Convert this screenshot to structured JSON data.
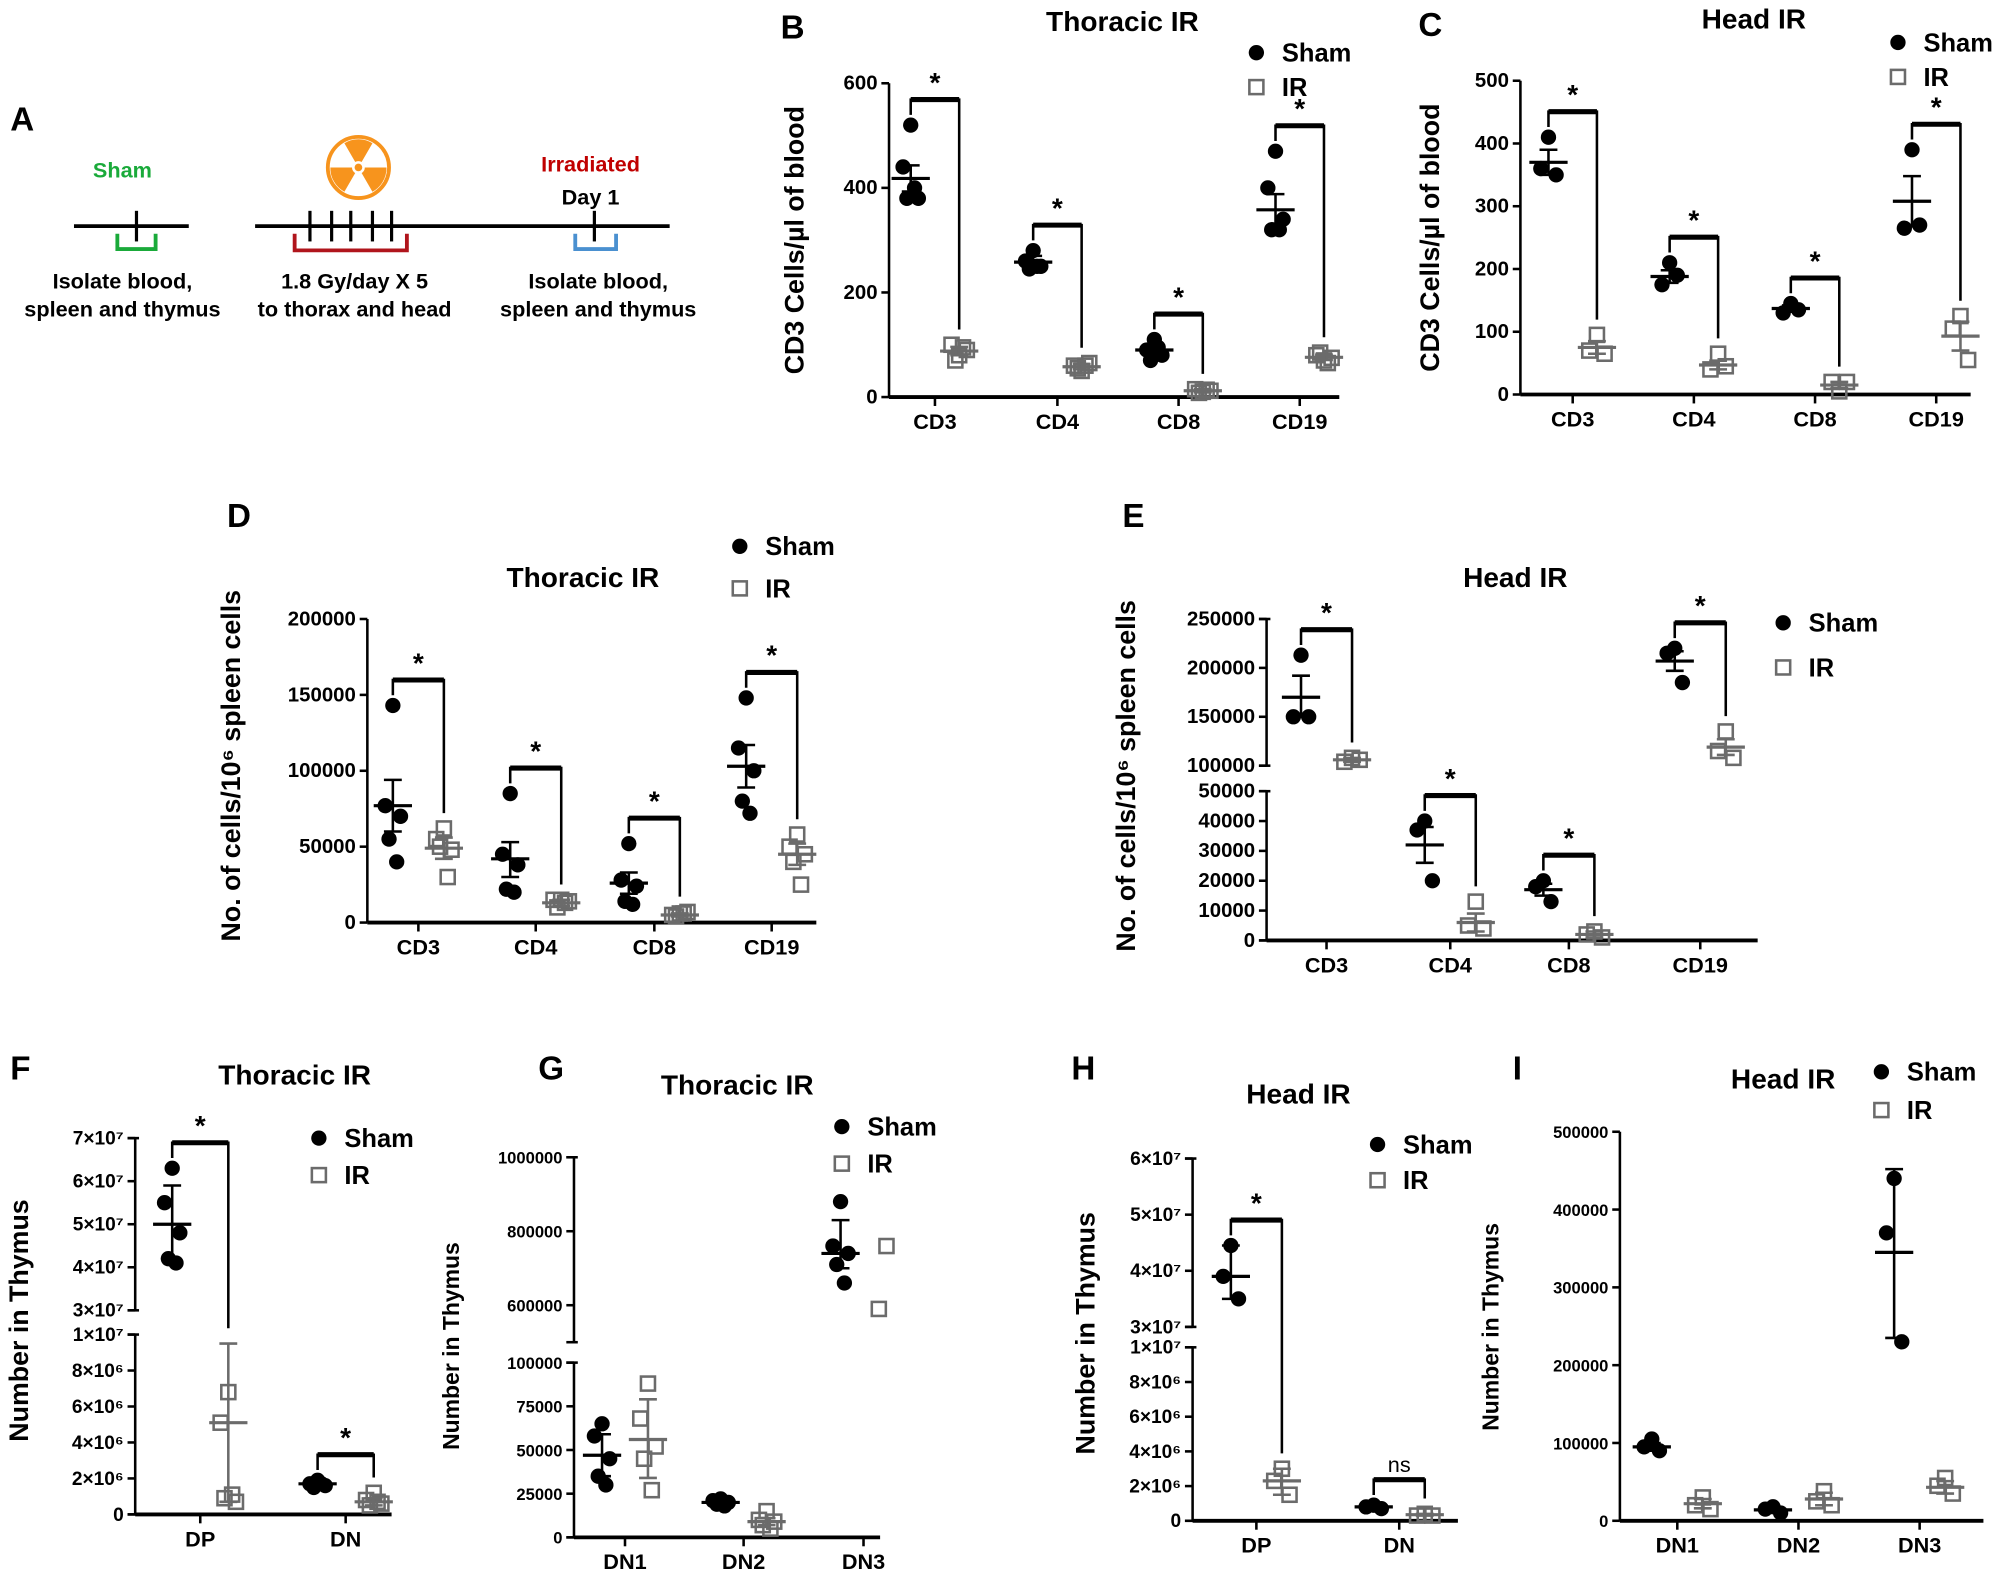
{
  "panel_a": {
    "letter": "A",
    "sham_label": "Sham",
    "irradiated_label": "Irradiated",
    "day_label": "Day 1",
    "left_caption": [
      "Isolate blood,",
      "spleen and thymus"
    ],
    "middle_caption": [
      "1.8 Gy/day X 5",
      "to thorax and head"
    ],
    "right_caption": [
      "Isolate blood,",
      "spleen and thymus"
    ],
    "icon": "radiation-icon",
    "colors": {
      "sham": "#1aaa3a",
      "irradiated": "#c00000",
      "radiation": "#f7941d",
      "bracket_red": "#b0151c",
      "bracket_blue": "#4a90d0"
    }
  },
  "chart_data": [
    {
      "panel": "B",
      "type": "scatter",
      "title": "Thoracic IR",
      "ylabel": "CD3 Cells/µl of blood",
      "categories": [
        "CD3",
        "CD4",
        "CD8",
        "CD19"
      ],
      "ylim": [
        0,
        600
      ],
      "ytick_values": [
        0,
        200,
        400,
        600
      ],
      "ytick_labels": [
        "0",
        "200",
        "400",
        "600"
      ],
      "legend": [
        "Sham",
        "IR"
      ],
      "legend_placement": "top-right",
      "series": [
        {
          "name": "Sham",
          "marker": "filled-circle",
          "values": [
            [
              520,
              440,
              380,
              380,
              400
            ],
            [
              280,
              260,
              250,
              245,
              250
            ],
            [
              110,
              90,
              80,
              70,
              95
            ],
            [
              470,
              400,
              340,
              320,
              320
            ]
          ],
          "mean": [
            418,
            258,
            90,
            358
          ],
          "err": [
            [
              393,
              443
            ],
            [
              246,
              270
            ],
            [
              80,
              100
            ],
            [
              328,
              388
            ]
          ]
        },
        {
          "name": "IR",
          "marker": "open-square",
          "values": [
            [
              80,
              100,
              90,
              70,
              95
            ],
            [
              50,
              60,
              65,
              55,
              60
            ],
            [
              10,
              15,
              12,
              8,
              14
            ],
            [
              70,
              80,
              75,
              85,
              65
            ]
          ],
          "mean": [
            88,
            58,
            12,
            76
          ],
          "err": [
            [
              80,
              96
            ],
            [
              53,
              63
            ],
            [
              9,
              15
            ],
            [
              71,
              81
            ]
          ]
        }
      ],
      "significance": [
        "*",
        "*",
        "*",
        "*"
      ]
    },
    {
      "panel": "C",
      "type": "scatter",
      "title": "Head IR",
      "ylabel": "CD3 Cells/µl of blood",
      "categories": [
        "CD3",
        "CD4",
        "CD8",
        "CD19"
      ],
      "ylim": [
        0,
        500
      ],
      "ytick_values": [
        0,
        100,
        200,
        300,
        400,
        500
      ],
      "ytick_labels": [
        "0",
        "100",
        "200",
        "300",
        "400",
        "500"
      ],
      "legend": [
        "Sham",
        "IR"
      ],
      "legend_placement": "top-right",
      "series": [
        {
          "name": "Sham",
          "marker": "filled-circle",
          "values": [
            [
              410,
              360,
              350
            ],
            [
              210,
              175,
              190
            ],
            [
              145,
              130,
              135
            ],
            [
              390,
              265,
              270
            ]
          ],
          "mean": [
            370,
            188,
            137,
            308
          ],
          "err": [
            [
              350,
              390
            ],
            [
              178,
              198
            ],
            [
              132,
              142
            ],
            [
              268,
              348
            ]
          ]
        },
        {
          "name": "IR",
          "marker": "open-square",
          "values": [
            [
              95,
              70,
              65
            ],
            [
              65,
              40,
              45
            ],
            [
              5,
              20,
              20
            ],
            [
              125,
              105,
              55
            ]
          ],
          "mean": [
            75,
            47,
            15,
            93
          ],
          "err": [
            [
              65,
              85
            ],
            [
              40,
              54
            ],
            [
              10,
              20
            ],
            [
              70,
              116
            ]
          ]
        }
      ],
      "significance": [
        "*",
        "*",
        "*",
        "*"
      ]
    },
    {
      "panel": "D",
      "type": "scatter",
      "title": "Thoracic IR",
      "ylabel": "No. of cells/10⁶ spleen cells",
      "categories": [
        "CD3",
        "CD4",
        "CD8",
        "CD19"
      ],
      "ylim": [
        0,
        200000
      ],
      "ytick_values": [
        0,
        50000,
        100000,
        150000,
        200000
      ],
      "ytick_labels": [
        "0",
        "50000",
        "100000",
        "150000",
        "200000"
      ],
      "legend": [
        "Sham",
        "IR"
      ],
      "legend_placement": "top-right",
      "series": [
        {
          "name": "Sham",
          "marker": "filled-circle",
          "values": [
            [
              143000,
              77000,
              70000,
              55000,
              40000
            ],
            [
              85000,
              45000,
              38000,
              22000,
              20000
            ],
            [
              52000,
              28000,
              24000,
              14000,
              12000
            ],
            [
              148000,
              115000,
              100000,
              80000,
              72000
            ]
          ],
          "mean": [
            77000,
            42000,
            26000,
            103000
          ],
          "err": [
            [
              60000,
              94000
            ],
            [
              30000,
              53000
            ],
            [
              19000,
              33000
            ],
            [
              89000,
              117000
            ]
          ]
        },
        {
          "name": "IR",
          "marker": "open-square",
          "values": [
            [
              62000,
              55000,
              48000,
              50000,
              30000
            ],
            [
              15000,
              15000,
              14000,
              10000,
              13000
            ],
            [
              6000,
              5000,
              7000,
              4000,
              6000
            ],
            [
              58000,
              50000,
              45000,
              40000,
              25000
            ]
          ],
          "mean": [
            49000,
            13000,
            5000,
            45000
          ],
          "err": [
            [
              42000,
              56000
            ],
            [
              11000,
              15000
            ],
            [
              4000,
              6000
            ],
            [
              38000,
              52000
            ]
          ]
        }
      ],
      "significance": [
        "*",
        "*",
        "*",
        "*"
      ]
    },
    {
      "panel": "E",
      "type": "scatter",
      "title": "Head IR",
      "ylabel": "No. of cells/10⁶ spleen cells",
      "categories": [
        "CD3",
        "CD4",
        "CD8",
        "CD19"
      ],
      "ylim": [
        0,
        250000
      ],
      "axis_break": [
        50000,
        100000
      ],
      "ytick_values": [
        0,
        10000,
        20000,
        30000,
        40000,
        50000,
        100000,
        150000,
        200000,
        250000
      ],
      "ytick_labels": [
        "0",
        "10000",
        "20000",
        "30000",
        "40000",
        "50000",
        "100000",
        "150000",
        "200000",
        "250000"
      ],
      "legend": [
        "Sham",
        "IR"
      ],
      "legend_placement": "right",
      "series": [
        {
          "name": "Sham",
          "marker": "filled-circle",
          "values": [
            [
              213000,
              150000,
              150000
            ],
            [
              40000,
              37000,
              20000
            ],
            [
              20000,
              18000,
              13000
            ],
            [
              220000,
              215000,
              185000
            ]
          ],
          "mean": [
            170000,
            32000,
            17000,
            207000
          ],
          "err": [
            [
              150000,
              192000
            ],
            [
              26000,
              38000
            ],
            [
              15000,
              19000
            ],
            [
              197000,
              217000
            ]
          ]
        },
        {
          "name": "IR",
          "marker": "open-square",
          "values": [
            [
              108000,
              104000,
              106000
            ],
            [
              13000,
              5000,
              4000
            ],
            [
              3000,
              2000,
              1000
            ],
            [
              135000,
              115000,
              108000
            ]
          ],
          "mean": [
            106000,
            6000,
            2000,
            119000
          ],
          "err": [
            [
              104000,
              108000
            ],
            [
              3000,
              9000
            ],
            [
              1000,
              3000
            ],
            [
              111000,
              127000
            ]
          ]
        }
      ],
      "significance": [
        "*",
        "*",
        "*",
        "*"
      ]
    },
    {
      "panel": "F",
      "type": "scatter",
      "title": "Thoracic IR",
      "ylabel": "Number in Thymus",
      "categories": [
        "DP",
        "DN"
      ],
      "ylim": [
        0,
        70000000
      ],
      "axis_break": [
        10000000,
        30000000
      ],
      "ytick_values": [
        0,
        2000000,
        4000000,
        6000000,
        8000000,
        10000000,
        30000000,
        40000000,
        50000000,
        60000000,
        70000000
      ],
      "ytick_labels": [
        "0",
        "2×10⁶",
        "4×10⁶",
        "6×10⁶",
        "8×10⁶",
        "1×10⁷",
        "3×10⁷",
        "4×10⁷",
        "5×10⁷",
        "6×10⁷",
        "7×10⁷"
      ],
      "legend": [
        "Sham",
        "IR"
      ],
      "legend_placement": "top-right",
      "series": [
        {
          "name": "Sham",
          "marker": "filled-circle",
          "values": [
            [
              63000000,
              55000000,
              48000000,
              42000000,
              41000000
            ],
            [
              1900000,
              1700000,
              1600000,
              1500000,
              1700000
            ]
          ],
          "mean": [
            50000000,
            1700000
          ],
          "err": [
            [
              41000000,
              59000000
            ],
            [
              1600000,
              1800000
            ]
          ]
        },
        {
          "name": "IR",
          "marker": "open-square",
          "values": [
            [
              6800000,
              5100000,
              700000,
              900000,
              1100000
            ],
            [
              1200000,
              800000,
              600000,
              500000,
              700000
            ]
          ],
          "mean": [
            5100000,
            700000
          ],
          "err": [
            [
              700000,
              9500000
            ],
            [
              500000,
              900000
            ]
          ]
        }
      ],
      "significance": [
        "*",
        "*"
      ]
    },
    {
      "panel": "G",
      "type": "scatter",
      "title": "Thoracic IR",
      "ylabel": "Number in Thymus",
      "categories": [
        "DN1",
        "DN2",
        "DN3"
      ],
      "ylim": [
        0,
        1000000
      ],
      "axis_break": [
        100000,
        500000
      ],
      "ytick_values": [
        0,
        25000,
        50000,
        75000,
        100000,
        600000,
        800000,
        1000000
      ],
      "ytick_labels": [
        "0",
        "25000",
        "50000",
        "75000",
        "100000",
        "600000",
        "800000",
        "1000000"
      ],
      "legend": [
        "Sham",
        "IR"
      ],
      "legend_placement": "top-right",
      "series": [
        {
          "name": "Sham",
          "marker": "filled-circle",
          "values": [
            [
              65000,
              58000,
              45000,
              35000,
              30000
            ],
            [
              22000,
              21000,
              20000,
              19000,
              18000
            ],
            [
              880000,
              760000,
              740000,
              710000,
              660000
            ]
          ],
          "mean": [
            47000,
            20000,
            740000
          ],
          "err": [
            [
              35000,
              59000
            ],
            [
              19000,
              21000
            ],
            [
              700000,
              830000
            ]
          ]
        },
        {
          "name": "IR",
          "marker": "open-square",
          "values": [
            [
              88000,
              68000,
              52000,
              45000,
              27000
            ],
            [
              15000,
              10000,
              9000,
              7000,
              5000
            ],
            [
              760000,
              590000
            ]
          ],
          "mean": [
            56000,
            9000,
            null
          ],
          "err": [
            [
              34000,
              79000
            ],
            [
              7000,
              11000
            ],
            null
          ]
        }
      ],
      "significance": [
        null,
        null,
        null
      ]
    },
    {
      "panel": "H",
      "type": "scatter",
      "title": "Head IR",
      "ylabel": "Number in Thymus",
      "categories": [
        "DP",
        "DN"
      ],
      "ylim": [
        0,
        60000000
      ],
      "axis_break": [
        10000000,
        30000000
      ],
      "ytick_values": [
        0,
        2000000,
        4000000,
        6000000,
        8000000,
        10000000,
        30000000,
        40000000,
        50000000,
        60000000
      ],
      "ytick_labels": [
        "0",
        "2×10⁶",
        "4×10⁶",
        "6×10⁶",
        "8×10⁶",
        "1×10⁷",
        "3×10⁷",
        "4×10⁷",
        "5×10⁷",
        "6×10⁷"
      ],
      "legend": [
        "Sham",
        "IR"
      ],
      "legend_placement": "top-right",
      "series": [
        {
          "name": "Sham",
          "marker": "filled-circle",
          "values": [
            [
              44500000,
              39000000,
              35000000
            ],
            [
              900000,
              800000,
              700000
            ]
          ],
          "mean": [
            39000000,
            800000
          ],
          "err": [
            [
              35000000,
              44500000
            ],
            [
              700000,
              900000
            ]
          ]
        },
        {
          "name": "IR",
          "marker": "open-square",
          "values": [
            [
              3000000,
              2300000,
              1500000
            ],
            [
              400000,
              300000,
              300000
            ]
          ],
          "mean": [
            2300000,
            350000
          ],
          "err": [
            [
              1500000,
              3000000
            ],
            [
              300000,
              400000
            ]
          ]
        }
      ],
      "significance": [
        "*",
        "ns"
      ]
    },
    {
      "panel": "I",
      "type": "scatter",
      "title": "Head IR",
      "ylabel": "Number in Thymus",
      "categories": [
        "DN1",
        "DN2",
        "DN3"
      ],
      "ylim": [
        0,
        500000
      ],
      "ytick_values": [
        0,
        100000,
        200000,
        300000,
        400000,
        500000
      ],
      "ytick_labels": [
        "0",
        "100000",
        "200000",
        "300000",
        "400000",
        "500000"
      ],
      "legend": [
        "Sham",
        "IR"
      ],
      "legend_placement": "top-right",
      "series": [
        {
          "name": "Sham",
          "marker": "filled-circle",
          "values": [
            [
              105000,
              95000,
              90000
            ],
            [
              18000,
              15000,
              10000
            ],
            [
              440000,
              370000,
              230000
            ]
          ],
          "mean": [
            95000,
            14000,
            345000
          ],
          "err": [
            [
              90000,
              100000
            ],
            [
              11000,
              17000
            ],
            [
              235000,
              452000
            ]
          ]
        },
        {
          "name": "IR",
          "marker": "open-square",
          "values": [
            [
              30000,
              20000,
              15000
            ],
            [
              38000,
              25000,
              20000
            ],
            [
              55000,
              45000,
              35000
            ]
          ],
          "mean": [
            22000,
            28000,
            43000
          ],
          "err": [
            [
              16000,
              28000
            ],
            [
              20000,
              36000
            ],
            [
              35000,
              51000
            ]
          ]
        }
      ],
      "significance": [
        null,
        null,
        null
      ]
    }
  ],
  "colors": {
    "sham": "#000000",
    "ir": "#6b6b6b",
    "axis": "#000000"
  }
}
